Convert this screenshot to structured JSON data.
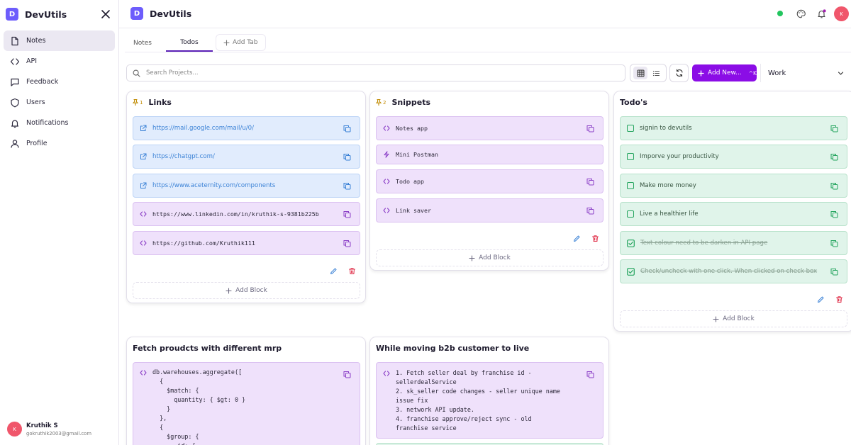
{
  "app": {
    "name": "DevUtils",
    "logo_letter": "D"
  },
  "sidebar": {
    "items": [
      {
        "label": "Notes",
        "icon": "file-icon",
        "active": true
      },
      {
        "label": "API",
        "icon": "code-icon"
      },
      {
        "label": "Feedback",
        "icon": "message-icon"
      },
      {
        "label": "Users",
        "icon": "shield-icon"
      },
      {
        "label": "Notifications",
        "icon": "bell-icon"
      },
      {
        "label": "Profile",
        "icon": "user-icon"
      }
    ],
    "user": {
      "initial": "K",
      "name": "Kruthik S",
      "email": "gokruthik2003@gmail.com"
    }
  },
  "header": {
    "avatar_initial": "K",
    "status_color": "#22c55e"
  },
  "tabs": {
    "items": [
      "Notes",
      "Todos"
    ],
    "active": "Todos",
    "add_label": "Add Tab"
  },
  "toolbar": {
    "search_placeholder": "Search Projects...",
    "add_label": "Add New...",
    "add_shortcut": "^K",
    "workspace": "Work"
  },
  "cards": {
    "links": {
      "pin": "1",
      "title": "Links",
      "blocks": [
        "https://mail.google.com/mail/u/0/",
        "https://chatgpt.com/",
        "https://www.aceternity.com/components",
        "https://www.linkedin.com/in/kruthik-s-9381b225b",
        "https://github.com/Kruthik111"
      ],
      "add_block": "Add Block"
    },
    "snippets": {
      "pin": "2",
      "title": "Snippets",
      "blocks": [
        "Notes app",
        "Mini Postman",
        "Todo app",
        "Link saver"
      ],
      "add_block": "Add Block"
    },
    "todos": {
      "title": "Todo's",
      "blocks": [
        {
          "text": "signin to devutils",
          "done": false
        },
        {
          "text": "Imporve your productivity",
          "done": false
        },
        {
          "text": "Make more money",
          "done": false
        },
        {
          "text": "Live a healthier life",
          "done": false
        },
        {
          "text": "Text colour need to be darken in API page",
          "done": true
        },
        {
          "text": "Check/uncheck with one click. When clicked on check box",
          "done": true
        }
      ],
      "add_block": "Add Block"
    },
    "fetch": {
      "title": "Fetch proudcts with different mrp",
      "code": "db.warehouses.aggregate([\n  {\n    $match: {\n      quantity: { $gt: 0 }\n    }\n  },\n  {\n    $group: {\n      _id: {"
    },
    "b2b": {
      "title": "While moving b2b customer to live",
      "code": "1. Fetch seller deal by franchise id -\nsellerdealService\n2. sk_seller code changes - seller unique name\nissue fix\n3. network API update.\n4. franchise approve/reject sync - old\nfranchise service"
    }
  }
}
